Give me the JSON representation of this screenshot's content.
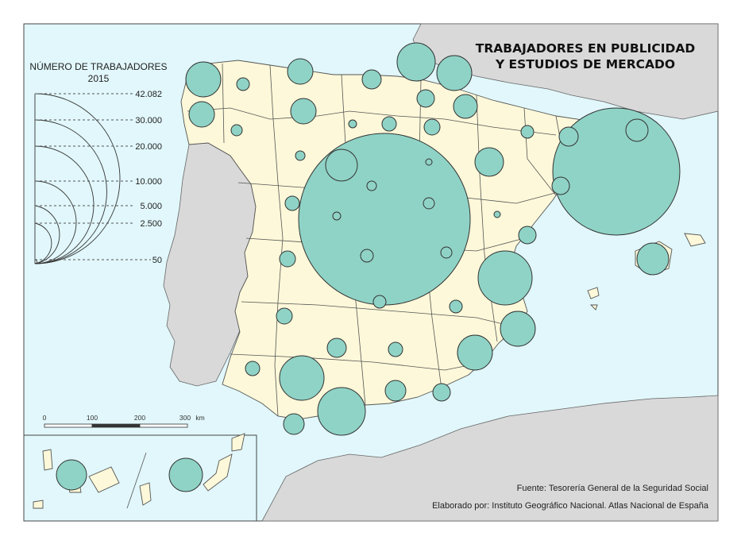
{
  "title_line1": "TRABAJADORES EN PUBLICIDAD",
  "title_line2": "Y ESTUDIOS DE MERCADO",
  "legend": {
    "title": "NÚMERO DE TRABAJADORES",
    "year": "2015",
    "values": [
      "42.082",
      "30.000",
      "20.000",
      "10.000",
      "5.000",
      "2.500",
      "50"
    ]
  },
  "scale": {
    "ticks": [
      "0",
      "100",
      "200",
      "300"
    ],
    "unit": "km"
  },
  "source": "Fuente: Tesorería General de la Seguridad Social",
  "credit": "Elaborado por: Instituto Geográfico Nacional. Atlas Nacional de España",
  "colors": {
    "sea": "#e1f7fb",
    "land_spain": "#fdf8d9",
    "land_foreign": "#d9d9d9",
    "symbol": "#8fd3c6"
  }
}
